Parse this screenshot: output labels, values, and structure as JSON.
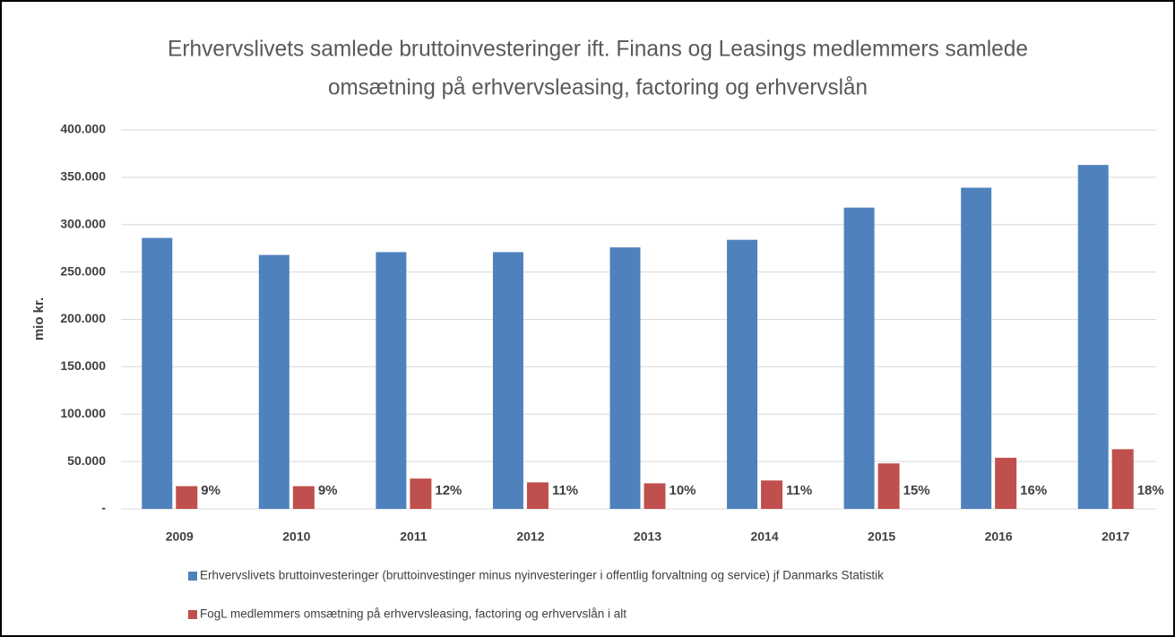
{
  "chart_data": {
    "type": "bar",
    "title": [
      "Erhvervslivets samlede bruttoinvesteringer ift. Finans og Leasings medlemmers samlede",
      "omsætning på erhvervsleasing, factoring og erhvervslån"
    ],
    "y_label": "mio kr.",
    "categories": [
      "2009",
      "2010",
      "2011",
      "2012",
      "2013",
      "2014",
      "2015",
      "2016",
      "2017"
    ],
    "series": [
      {
        "name": "Erhvervslivets bruttoinvesteringer (bruttoinvestinger minus nyinvesteringer i offentlig forvaltning og service) jf Danmarks Statistik",
        "color": "#4f81bd",
        "values": [
          286000,
          268000,
          271000,
          271000,
          276000,
          284000,
          318000,
          339000,
          363000
        ]
      },
      {
        "name": "FogL medlemmers omsætning på erhvervsleasing, factoring og erhvervslån i alt",
        "color": "#c0504d",
        "values": [
          24000,
          24000,
          32000,
          28000,
          27000,
          30000,
          48000,
          54000,
          63000
        ],
        "annotations": [
          "9%",
          "9%",
          "12%",
          "11%",
          "10%",
          "11%",
          "15%",
          "16%",
          "18%"
        ]
      }
    ],
    "ylim": [
      0,
      400000
    ],
    "yticks": [
      {
        "value": 0,
        "label": "-"
      },
      {
        "value": 50000,
        "label": "50.000"
      },
      {
        "value": 100000,
        "label": "100.000"
      },
      {
        "value": 150000,
        "label": "150.000"
      },
      {
        "value": 200000,
        "label": "200.000"
      },
      {
        "value": 250000,
        "label": "250.000"
      },
      {
        "value": 300000,
        "label": "300.000"
      },
      {
        "value": 350000,
        "label": "350.000"
      },
      {
        "value": 400000,
        "label": "400.000"
      }
    ],
    "grid": true
  }
}
